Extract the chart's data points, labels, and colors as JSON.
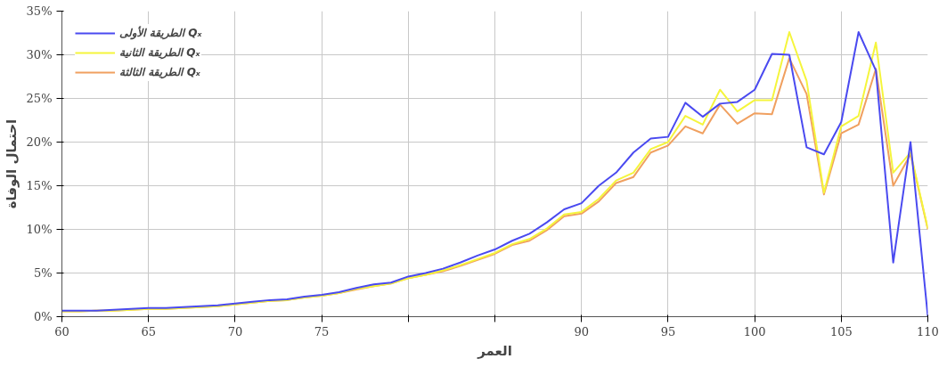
{
  "chart_data": {
    "type": "line",
    "xlabel": "العمر",
    "ylabel": "احتمال الوفاة",
    "x": [
      60,
      61,
      62,
      63,
      64,
      65,
      66,
      67,
      68,
      69,
      70,
      71,
      72,
      73,
      74,
      75,
      76,
      77,
      78,
      79,
      80,
      81,
      82,
      83,
      84,
      85,
      86,
      87,
      88,
      89,
      90,
      91,
      92,
      93,
      94,
      95,
      96,
      97,
      98,
      99,
      100,
      101,
      102,
      103,
      104,
      105,
      106,
      107,
      108,
      109,
      110
    ],
    "series": [
      {
        "name": "الطريقة الأولى Qₓ",
        "color": "#4a4af0",
        "values": [
          0.7,
          0.7,
          0.7,
          0.8,
          0.9,
          1.0,
          1.0,
          1.1,
          1.2,
          1.3,
          1.5,
          1.7,
          1.9,
          2.0,
          2.3,
          2.5,
          2.8,
          3.3,
          3.7,
          3.9,
          4.6,
          5.0,
          5.5,
          6.2,
          7.0,
          7.7,
          8.7,
          9.5,
          10.8,
          12.3,
          13.0,
          15.0,
          16.5,
          18.8,
          20.4,
          20.6,
          24.5,
          22.9,
          24.4,
          24.6,
          26.0,
          30.1,
          30.0,
          19.4,
          18.6,
          22.3,
          32.6,
          28.2,
          6.2,
          20.0,
          0.0
        ]
      },
      {
        "name": "الطريقة الثانية Qₓ",
        "color": "#f5f53c",
        "values": [
          0.6,
          0.6,
          0.7,
          0.7,
          0.8,
          0.9,
          0.9,
          1.0,
          1.1,
          1.2,
          1.4,
          1.6,
          1.8,
          1.9,
          2.2,
          2.4,
          2.7,
          3.2,
          3.5,
          3.8,
          4.4,
          4.8,
          5.3,
          5.9,
          6.6,
          7.3,
          8.3,
          8.9,
          10.1,
          11.7,
          12.0,
          13.5,
          15.6,
          16.5,
          19.2,
          20.0,
          23.0,
          22.0,
          26.0,
          23.5,
          24.8,
          24.8,
          32.6,
          27.0,
          14.2,
          21.8,
          23.0,
          31.4,
          16.5,
          18.8,
          10.1
        ]
      },
      {
        "name": "الطريقة الثالثة Qₓ",
        "color": "#f0a060",
        "values": [
          0.6,
          0.6,
          0.7,
          0.7,
          0.8,
          0.9,
          0.9,
          1.0,
          1.1,
          1.2,
          1.4,
          1.6,
          1.8,
          1.9,
          2.2,
          2.4,
          2.7,
          3.1,
          3.5,
          3.8,
          4.4,
          4.8,
          5.2,
          5.8,
          6.5,
          7.2,
          8.2,
          8.7,
          9.9,
          11.5,
          11.8,
          13.2,
          15.3,
          16.0,
          18.8,
          19.6,
          21.8,
          21.0,
          24.3,
          22.1,
          23.3,
          23.2,
          29.6,
          25.5,
          14.0,
          21.0,
          22.0,
          28.4,
          15.0,
          18.6,
          10.0
        ]
      }
    ],
    "xlim": [
      60,
      110
    ],
    "xticks": [
      60,
      65,
      70,
      75,
      {
        "value": 80,
        "label": null
      },
      {
        "value": 85,
        "label": null
      },
      90,
      95,
      100,
      105,
      110
    ],
    "ylim": [
      0,
      35
    ],
    "yticks": [
      {
        "value": 0,
        "label": "0%"
      },
      {
        "value": 5,
        "label": "5%"
      },
      {
        "value": 10,
        "label": "10%"
      },
      {
        "value": 15,
        "label": "15%"
      },
      {
        "value": 20,
        "label": "20%"
      },
      {
        "value": 25,
        "label": "25%"
      },
      {
        "value": 30,
        "label": "30%"
      },
      {
        "value": 35,
        "label": "35%"
      }
    ],
    "grid": true,
    "legend": "top left",
    "line_style": "solid"
  }
}
